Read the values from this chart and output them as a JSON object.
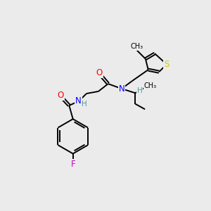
{
  "bg_color": "#ebebeb",
  "bond_color": "#000000",
  "atom_colors": {
    "O": "#ff0000",
    "N": "#0000ff",
    "S": "#cccc00",
    "F": "#cc00cc",
    "H": "#4a9a9a",
    "C": "#000000"
  },
  "figsize": [
    3.0,
    3.0
  ],
  "dpi": 100,
  "lw": 1.4,
  "fs": 8.5,
  "fs_small": 7.5
}
